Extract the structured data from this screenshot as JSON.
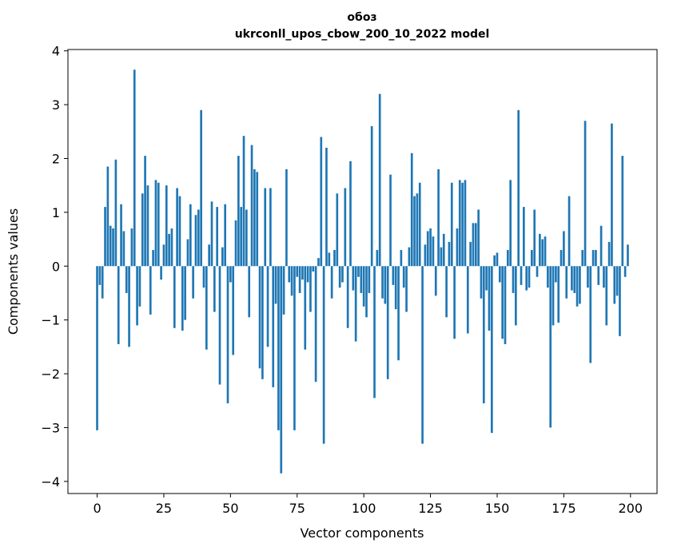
{
  "chart_data": {
    "type": "bar",
    "title": "обоз",
    "subtitle": "ukrconll_upos_cbow_200_10_2022 model",
    "xlabel": "Vector components",
    "ylabel": "Components values",
    "bar_color": "#1f77b4",
    "axis_color": "#000000",
    "n_components": 200,
    "x_is_index": true,
    "xlim": [
      -10.95,
      209.95
    ],
    "ylim": [
      -4.225,
      4.025
    ],
    "xticks": [
      0,
      25,
      50,
      75,
      100,
      125,
      150,
      175,
      200
    ],
    "yticks": [
      -4,
      -3,
      -2,
      -1,
      0,
      1,
      2,
      3,
      4
    ],
    "grid": false,
    "legend": false,
    "values": [
      -3.05,
      -0.35,
      -0.6,
      1.1,
      1.85,
      0.75,
      0.7,
      1.98,
      -1.45,
      1.15,
      0.65,
      -0.5,
      -1.5,
      0.7,
      3.65,
      -1.1,
      -0.75,
      1.35,
      2.05,
      1.5,
      -0.9,
      0.3,
      1.6,
      1.55,
      -0.25,
      0.4,
      1.5,
      0.6,
      0.7,
      -1.15,
      1.45,
      1.3,
      -1.2,
      -1.0,
      0.5,
      1.15,
      -0.6,
      0.95,
      1.05,
      2.9,
      -0.4,
      -1.55,
      0.4,
      1.2,
      -0.85,
      1.1,
      -2.2,
      0.35,
      1.15,
      -2.55,
      -0.3,
      -1.65,
      0.85,
      2.05,
      1.1,
      2.42,
      1.05,
      -0.95,
      2.25,
      1.8,
      1.75,
      -1.9,
      -2.1,
      1.45,
      -1.5,
      1.45,
      -2.25,
      -0.7,
      -3.05,
      -3.85,
      -0.9,
      1.8,
      -0.3,
      -0.55,
      -3.05,
      -0.2,
      -0.5,
      -0.25,
      -1.55,
      -0.3,
      -0.85,
      -0.1,
      -2.15,
      0.15,
      2.4,
      -3.3,
      2.2,
      0.25,
      -0.6,
      0.3,
      1.35,
      -0.4,
      -0.3,
      1.45,
      -1.15,
      1.95,
      -0.45,
      -1.4,
      -0.2,
      -0.5,
      -0.75,
      -0.95,
      -0.5,
      2.6,
      -2.45,
      0.3,
      3.2,
      -0.6,
      -0.7,
      -2.1,
      1.7,
      -0.35,
      -0.8,
      -1.75,
      0.3,
      -0.4,
      -0.85,
      0.35,
      2.1,
      1.3,
      1.35,
      1.55,
      -3.3,
      0.4,
      0.65,
      0.7,
      0.55,
      -0.55,
      1.8,
      0.35,
      0.6,
      -0.95,
      0.45,
      1.55,
      -1.35,
      0.7,
      1.6,
      1.55,
      1.6,
      -1.25,
      0.45,
      0.8,
      0.8,
      1.05,
      -0.6,
      -2.55,
      -0.45,
      -1.2,
      -3.1,
      0.2,
      0.25,
      -0.3,
      -1.35,
      -1.45,
      0.3,
      1.6,
      -0.5,
      -1.1,
      2.9,
      -0.35,
      1.1,
      -0.45,
      -0.4,
      0.3,
      1.05,
      -0.2,
      0.6,
      0.5,
      0.55,
      -0.4,
      -3.0,
      -1.1,
      -0.3,
      -1.05,
      0.3,
      0.65,
      -0.6,
      1.3,
      -0.45,
      -0.5,
      -0.75,
      -0.7,
      0.3,
      2.7,
      -0.4,
      -1.8,
      0.3,
      0.3,
      -0.35,
      0.75,
      -0.4,
      -1.1,
      0.45,
      2.65,
      -0.7,
      -0.55,
      -1.3,
      2.05,
      -0.2,
      0.4
    ]
  }
}
